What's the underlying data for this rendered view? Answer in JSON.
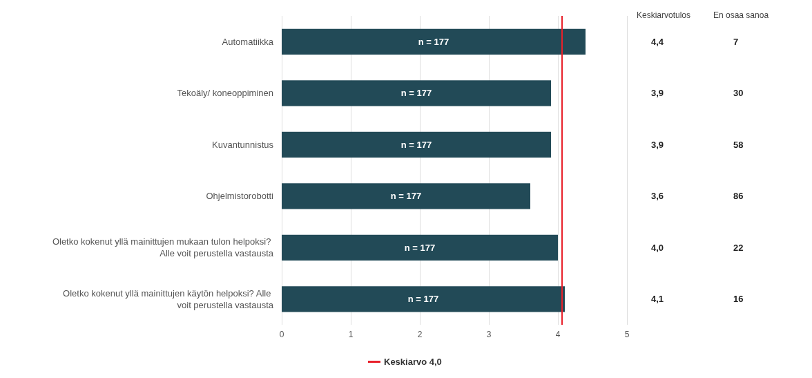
{
  "chart_data": {
    "type": "bar",
    "orientation": "horizontal",
    "categories": [
      "Automatiikka",
      "Tekoäly/ koneoppiminen",
      "Kuvantunnistus",
      "Ohjelmistorobotti",
      "Oletko kokenut yllä mainittujen mukaan tulon helpoksi? Alle voit perustella vastausta",
      "Oletko kokenut yllä mainittujen käytön helpoksi? Alle voit perustella vastausta"
    ],
    "values": [
      4.4,
      3.9,
      3.9,
      3.6,
      4.0,
      4.1
    ],
    "color": "#224a57",
    "xlim": [
      0,
      5
    ],
    "xticks": [
      0,
      1,
      2,
      3,
      4,
      5
    ],
    "grid": "x",
    "legend": "bottom",
    "ref_lines": [
      {
        "axis": "x",
        "value": 4.06,
        "label": "Keskiarvo 4,0",
        "color": "#e8202a"
      }
    ],
    "annotations": [
      "Keskiarvotulos",
      "En osaa sanoa",
      "4,4",
      "7",
      "n = 177",
      "3,9",
      "30",
      "n = 177",
      "3,9",
      "58",
      "n = 177",
      "3,6",
      "86",
      "n = 177",
      "4,0",
      "22",
      "n = 177",
      "4,1",
      "16",
      "n = 177"
    ]
  }
}
